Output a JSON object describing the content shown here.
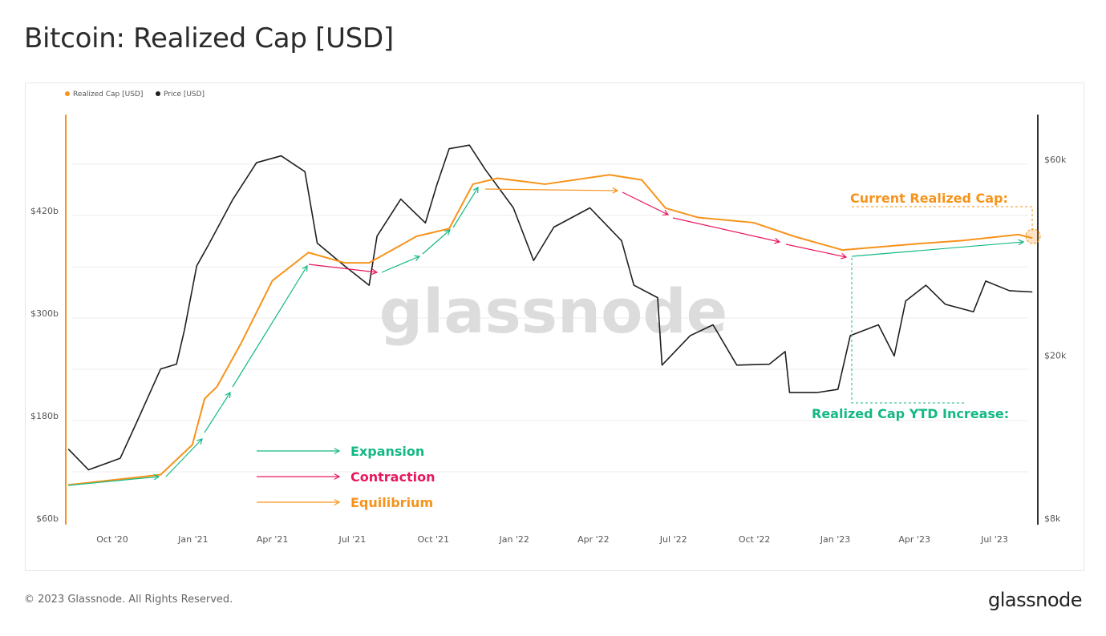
{
  "title": "Bitcoin: Realized Cap [USD]",
  "footer": "© 2023 Glassnode. All Rights Reserved.",
  "brand": "glassnode",
  "watermark": "glassnode",
  "colors": {
    "realized_cap": "#f7931a",
    "price": "#1f1f1f",
    "expansion": "#14b884",
    "contraction": "#e8175d",
    "equilibrium": "#f7931a"
  },
  "chart_data": {
    "type": "line",
    "title": "Bitcoin: Realized Cap [USD]",
    "legend": [
      {
        "name": "Realized Cap [USD]",
        "color": "#f7931a"
      },
      {
        "name": "Price [USD]",
        "color": "#1f1f1f"
      }
    ],
    "legend_position": "top-left",
    "x_ticks": [
      "Oct '20",
      "Jan '21",
      "Apr '21",
      "Jul '21",
      "Oct '21",
      "Jan '22",
      "Apr '22",
      "Jul '22",
      "Oct '22",
      "Jan '23",
      "Apr '23",
      "Jul '23"
    ],
    "x_tick_dates": [
      "2020-10-01",
      "2021-01-01",
      "2021-04-01",
      "2021-07-01",
      "2021-10-01",
      "2022-01-01",
      "2022-04-01",
      "2022-07-01",
      "2022-10-01",
      "2023-01-01",
      "2023-04-01",
      "2023-07-01"
    ],
    "left_axis": {
      "scale": "linear",
      "unit": "billion USD",
      "ticks": [
        "$60b",
        "$180b",
        "$300b",
        "$420b"
      ],
      "tick_values": [
        60,
        180,
        300,
        420
      ],
      "range": [
        60,
        480
      ]
    },
    "right_axis": {
      "scale": "log",
      "unit": "thousand USD",
      "ticks": [
        "$8k",
        "$20k",
        "$60k"
      ],
      "tick_values": [
        8,
        20,
        60
      ],
      "range": [
        8,
        77
      ]
    },
    "grid": true,
    "series": [
      {
        "name": "Realized Cap [USD]",
        "axis": "left",
        "points": [
          [
            "2020-08-12",
            99
          ],
          [
            "2020-11-25",
            111
          ],
          [
            "2020-12-31",
            146
          ],
          [
            "2021-01-14",
            200
          ],
          [
            "2021-01-28",
            214
          ],
          [
            "2021-02-24",
            264
          ],
          [
            "2021-04-01",
            338
          ],
          [
            "2021-05-12",
            371
          ],
          [
            "2021-06-22",
            359
          ],
          [
            "2021-07-20",
            359
          ],
          [
            "2021-09-12",
            390
          ],
          [
            "2021-10-19",
            399
          ],
          [
            "2021-11-15",
            451
          ],
          [
            "2021-12-13",
            458
          ],
          [
            "2022-02-05",
            451
          ],
          [
            "2022-04-19",
            462
          ],
          [
            "2022-05-26",
            456
          ],
          [
            "2022-06-22",
            423
          ],
          [
            "2022-07-29",
            412
          ],
          [
            "2022-09-30",
            406
          ],
          [
            "2022-11-15",
            390
          ],
          [
            "2023-01-09",
            374
          ],
          [
            "2023-04-01",
            381
          ],
          [
            "2023-05-25",
            385
          ],
          [
            "2023-07-28",
            392
          ],
          [
            "2023-08-13",
            388
          ]
        ]
      },
      {
        "name": "Price [USD]",
        "axis": "right",
        "points": [
          [
            "2020-08-12",
            11.8
          ],
          [
            "2020-09-04",
            10.5
          ],
          [
            "2020-10-10",
            11.2
          ],
          [
            "2020-10-28",
            13.6
          ],
          [
            "2020-11-25",
            18.5
          ],
          [
            "2020-12-13",
            19.0
          ],
          [
            "2020-12-22",
            23
          ],
          [
            "2021-01-05",
            33
          ],
          [
            "2021-01-18",
            37
          ],
          [
            "2021-02-15",
            47.9
          ],
          [
            "2021-03-14",
            58.9
          ],
          [
            "2021-04-11",
            61.2
          ],
          [
            "2021-05-08",
            56
          ],
          [
            "2021-05-22",
            37.5
          ],
          [
            "2021-06-22",
            33
          ],
          [
            "2021-07-20",
            29.6
          ],
          [
            "2021-07-29",
            39
          ],
          [
            "2021-08-25",
            48
          ],
          [
            "2021-09-22",
            42
          ],
          [
            "2021-10-05",
            52
          ],
          [
            "2021-10-19",
            63.7
          ],
          [
            "2021-11-11",
            65
          ],
          [
            "2021-11-29",
            56.7
          ],
          [
            "2021-12-31",
            45.7
          ],
          [
            "2022-01-23",
            34
          ],
          [
            "2022-02-15",
            41
          ],
          [
            "2022-03-28",
            45.7
          ],
          [
            "2022-05-03",
            38
          ],
          [
            "2022-05-17",
            29.6
          ],
          [
            "2022-06-13",
            27.6
          ],
          [
            "2022-06-18",
            18.9
          ],
          [
            "2022-07-20",
            22.3
          ],
          [
            "2022-08-15",
            23.7
          ],
          [
            "2022-09-11",
            18.9
          ],
          [
            "2022-10-18",
            19.0
          ],
          [
            "2022-11-05",
            20.4
          ],
          [
            "2022-11-10",
            16.2
          ],
          [
            "2022-12-11",
            16.2
          ],
          [
            "2023-01-04",
            16.5
          ],
          [
            "2023-01-18",
            22.3
          ],
          [
            "2023-02-19",
            23.7
          ],
          [
            "2023-03-09",
            19.9
          ],
          [
            "2023-03-22",
            27.1
          ],
          [
            "2023-04-14",
            29.6
          ],
          [
            "2023-05-06",
            26.6
          ],
          [
            "2023-06-07",
            25.5
          ],
          [
            "2023-06-21",
            30.3
          ],
          [
            "2023-07-18",
            28.7
          ],
          [
            "2023-08-13",
            28.5
          ]
        ]
      }
    ],
    "annotations": {
      "key": [
        {
          "label": "Expansion",
          "color": "#14b884"
        },
        {
          "label": "Contraction",
          "color": "#e8175d"
        },
        {
          "label": "Equilibrium",
          "color": "#f7931a"
        }
      ],
      "current_realized_cap": "Current Realized Cap:",
      "ytd_increase": "Realized Cap YTD Increase:"
    }
  }
}
